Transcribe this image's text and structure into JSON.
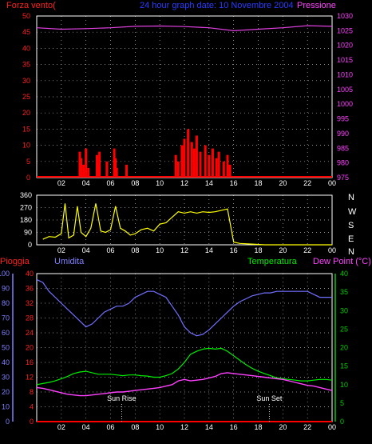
{
  "header": {
    "left_title": "Forza vento(",
    "center_title": "24 hour graph date: 10 Novembre 2004",
    "right_title": "Pressione"
  },
  "colors": {
    "wind": "#ff0000",
    "gust": "#ff0000",
    "pressure": "#e040e0",
    "direction": "#ffff00",
    "humidity": "#7070ff",
    "temperature": "#00ee00",
    "dewpoint": "#ff40ff",
    "rain": "#ff0000",
    "axis_temp": "#00cc00",
    "axis_hum": "#8080ff"
  },
  "compass": [
    "N",
    "W",
    "S",
    "E",
    "N"
  ],
  "bottom_labels": {
    "rain": "Pioggia",
    "humidity": "Umidita",
    "temperature": "Temperatura",
    "dewpoint": "Dew Point (°C)",
    "sunrise": "Sun Rise",
    "sunset": "Sun Set"
  },
  "chart_data": [
    {
      "type": "line",
      "x_ticks": [
        "02",
        "04",
        "06",
        "08",
        "10",
        "12",
        "14",
        "16",
        "18",
        "20",
        "22",
        "00"
      ],
      "left_axis": {
        "ylim": [
          0,
          50
        ],
        "ticks": [
          0,
          5,
          10,
          15,
          20,
          25,
          30,
          35,
          40,
          45,
          50
        ]
      },
      "right_axis": {
        "ylim": [
          975,
          1030
        ],
        "ticks": [
          975,
          980,
          985,
          990,
          995,
          1000,
          1005,
          1010,
          1015,
          1020,
          1025,
          1030
        ]
      },
      "series": [
        {
          "name": "Pressione",
          "axis": "right",
          "x": [
            0,
            2,
            4,
            6,
            8,
            10,
            12,
            14,
            16,
            18,
            20,
            22,
            24
          ],
          "values": [
            1026,
            1025.5,
            1025.7,
            1026,
            1026.5,
            1026.6,
            1026.4,
            1026,
            1025,
            1025.5,
            1026,
            1026.7,
            1026.5
          ]
        },
        {
          "name": "Forza vento",
          "x": [
            3.5,
            3.6,
            3.8,
            4.0,
            4.2,
            4.9,
            5.0,
            5.1,
            5.7,
            6.3,
            6.4,
            6.5,
            7.3,
            11.3,
            11.5,
            11.8,
            12.0,
            12.3,
            12.6,
            12.8,
            13.0,
            13.3,
            13.7,
            14.0,
            14.3,
            14.6,
            14.8,
            15.2,
            15.5,
            15.7
          ],
          "values": [
            8,
            6,
            4,
            9,
            3,
            7,
            4,
            8,
            5,
            9,
            6,
            3,
            4,
            7,
            5,
            10,
            12,
            15,
            11,
            9,
            13,
            8,
            10,
            7,
            9,
            6,
            8,
            5,
            7,
            4
          ]
        }
      ]
    },
    {
      "type": "line",
      "x_ticks": [
        "02",
        "04",
        "06",
        "08",
        "10",
        "12",
        "14",
        "16",
        "18",
        "20",
        "22",
        "00"
      ],
      "ylim": [
        0,
        360
      ],
      "y_ticks": [
        0,
        90,
        180,
        270,
        360
      ],
      "series": [
        {
          "name": "direction",
          "x": [
            0.5,
            1.0,
            1.5,
            2.0,
            2.3,
            2.6,
            3.0,
            3.3,
            3.6,
            4.0,
            4.4,
            4.8,
            5.2,
            5.6,
            6.0,
            6.4,
            6.8,
            7.2,
            7.6,
            8.0,
            8.5,
            9.0,
            9.5,
            10.0,
            10.5,
            11.0,
            11.5,
            12.0,
            12.5,
            13.0,
            13.5,
            14.0,
            14.5,
            15.0,
            15.5,
            16.0,
            16.5,
            17.5,
            18.5,
            20.0,
            22.0,
            24.0
          ],
          "values": [
            40,
            60,
            55,
            80,
            300,
            50,
            70,
            280,
            90,
            60,
            120,
            300,
            100,
            90,
            110,
            280,
            120,
            100,
            70,
            80,
            110,
            120,
            100,
            150,
            160,
            200,
            240,
            230,
            240,
            230,
            240,
            235,
            240,
            250,
            260,
            20,
            10,
            5,
            0,
            0,
            0,
            0
          ]
        }
      ]
    },
    {
      "type": "line",
      "x_ticks": [
        "02",
        "04",
        "06",
        "08",
        "10",
        "12",
        "14",
        "16",
        "18",
        "20",
        "22",
        "00"
      ],
      "left_axis": {
        "ylim": [
          0,
          100
        ],
        "ticks": [
          0,
          10,
          20,
          30,
          40,
          50,
          60,
          70,
          80,
          90,
          100
        ]
      },
      "mid_axis": {
        "ylim": [
          0,
          40
        ],
        "ticks": [
          0,
          4,
          8,
          12,
          16,
          20,
          24,
          28,
          32,
          36,
          40
        ]
      },
      "right_axis": {
        "ylim": [
          0,
          40
        ],
        "ticks": [
          0,
          5,
          10,
          15,
          20,
          25,
          30,
          35,
          40
        ]
      },
      "series": [
        {
          "name": "Umidita",
          "axis": "left",
          "x": [
            0,
            0.5,
            1,
            1.5,
            2,
            2.5,
            3,
            3.5,
            4,
            4.5,
            5,
            5.5,
            6,
            6.5,
            7,
            7.5,
            8,
            8.5,
            9,
            9.5,
            10,
            10.5,
            11,
            11.5,
            12,
            12.5,
            13,
            13.5,
            14,
            14.5,
            15,
            15.5,
            16,
            16.5,
            17,
            17.5,
            18,
            18.5,
            19,
            19.5,
            20,
            20.5,
            21,
            21.5,
            22,
            22.5,
            23,
            23.5,
            24
          ],
          "values": [
            96,
            94,
            88,
            84,
            80,
            76,
            72,
            68,
            64,
            66,
            70,
            74,
            76,
            78,
            78,
            80,
            84,
            86,
            88,
            88,
            86,
            84,
            78,
            72,
            64,
            60,
            58,
            59,
            62,
            66,
            70,
            74,
            78,
            81,
            83,
            85,
            86,
            87,
            87,
            88,
            88,
            88,
            88,
            88,
            88,
            86,
            84,
            84,
            84
          ]
        },
        {
          "name": "Temperatura",
          "axis": "right",
          "x": [
            0,
            0.5,
            1,
            1.5,
            2,
            2.5,
            3,
            3.5,
            4,
            4.5,
            5,
            5.5,
            6,
            6.5,
            7,
            7.5,
            8,
            8.5,
            9,
            9.5,
            10,
            10.5,
            11,
            11.5,
            12,
            12.5,
            13,
            13.5,
            14,
            14.5,
            15,
            15.5,
            16,
            16.5,
            17,
            17.5,
            18,
            18.5,
            19,
            19.5,
            20,
            20.5,
            21,
            21.5,
            22,
            22.5,
            23,
            23.5,
            24
          ],
          "values": [
            10,
            10.3,
            10.6,
            11,
            11.6,
            12.2,
            13,
            13.4,
            13.6,
            13.2,
            12.8,
            12.8,
            12.8,
            12.6,
            12.4,
            12.6,
            12.6,
            12.4,
            12.3,
            12,
            12,
            12.4,
            13,
            14.2,
            16,
            18.2,
            19,
            19.6,
            19.8,
            19.6,
            19.8,
            19,
            17.8,
            16.6,
            15.4,
            14.4,
            13.6,
            13,
            12.4,
            11.8,
            11.6,
            11.4,
            11.2,
            11,
            11,
            11.2,
            11.4,
            11.4,
            11.2
          ]
        },
        {
          "name": "Dew Point",
          "axis": "right",
          "x": [
            0,
            0.5,
            1,
            1.5,
            2,
            2.5,
            3,
            3.5,
            4,
            4.5,
            5,
            5.5,
            6,
            6.5,
            7,
            7.5,
            8,
            8.5,
            9,
            9.5,
            10,
            10.5,
            11,
            11.5,
            12,
            12.5,
            13,
            13.5,
            14,
            14.5,
            15,
            15.5,
            16,
            16.5,
            17,
            17.5,
            18,
            18.5,
            19,
            19.5,
            20,
            20.5,
            21,
            21.5,
            22,
            22.5,
            23,
            23.5,
            24
          ],
          "values": [
            9.2,
            9,
            8.6,
            8.2,
            7.8,
            7.4,
            7.2,
            7,
            7,
            7.2,
            7.4,
            7.6,
            7.8,
            8,
            8,
            8.2,
            8.4,
            8.6,
            8.8,
            9,
            9.2,
            9.6,
            10,
            11,
            11.4,
            11,
            11.2,
            11.4,
            11.8,
            12.2,
            13,
            13.2,
            13,
            12.8,
            12.6,
            12.4,
            12.2,
            12,
            11.8,
            11.6,
            11.4,
            11,
            10.6,
            10.2,
            9.8,
            9.6,
            9.2,
            8.8,
            8.4
          ]
        },
        {
          "name": "Pioggia",
          "axis": "left",
          "x": [
            0,
            24
          ],
          "values": [
            0,
            0
          ]
        }
      ],
      "annotations": [
        {
          "text": "Sun Rise",
          "x": 6.9
        },
        {
          "text": "Sun Set",
          "x": 18.9
        }
      ]
    }
  ]
}
